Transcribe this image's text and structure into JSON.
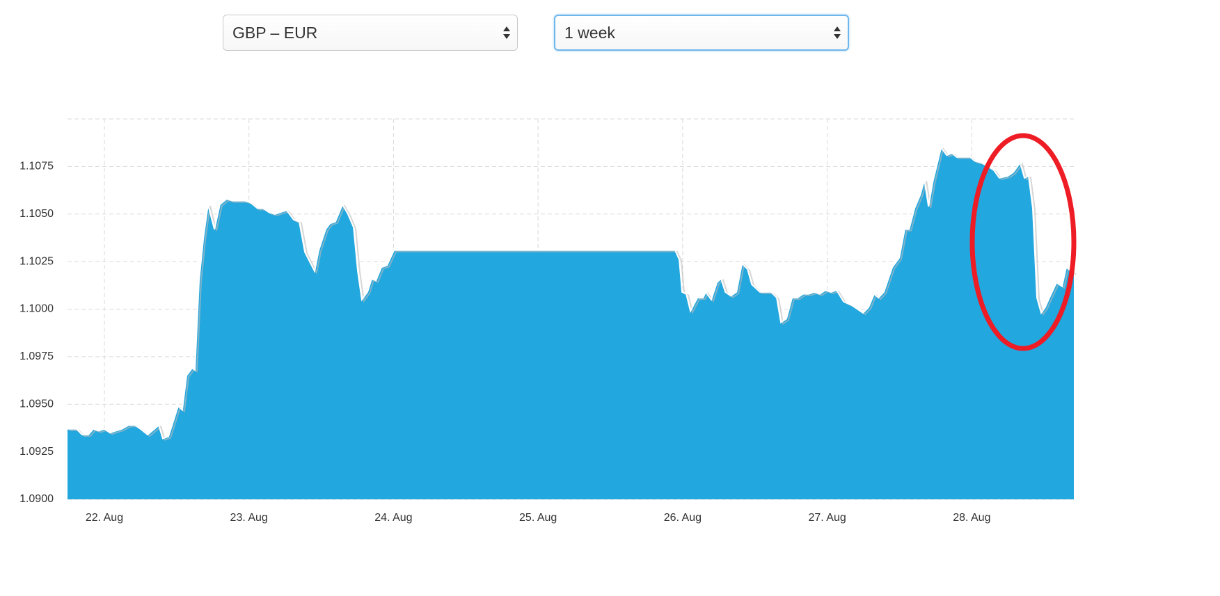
{
  "controls": {
    "pair": "GBP – EUR",
    "period": "1 week"
  },
  "chart_data": {
    "type": "area",
    "color": "#22a7df",
    "grid": true,
    "xlim": [
      21.745,
      28.706
    ],
    "xticks": [
      {
        "value": 22,
        "label": "22. Aug"
      },
      {
        "value": 23,
        "label": "23. Aug"
      },
      {
        "value": 24,
        "label": "24. Aug"
      },
      {
        "value": 25,
        "label": "25. Aug"
      },
      {
        "value": 26,
        "label": "26. Aug"
      },
      {
        "value": 27,
        "label": "27. Aug"
      },
      {
        "value": 28,
        "label": "28. Aug"
      }
    ],
    "ylim": [
      1.09,
      1.11
    ],
    "yticks": [
      {
        "value": 1.09,
        "label": "1.0900"
      },
      1.0925,
      {
        "value": 1.095,
        "label": "1.0950"
      },
      1.0975,
      {
        "value": 1.1,
        "label": "1.1000"
      },
      1.1025,
      {
        "value": 1.105,
        "label": "1.1050"
      },
      1.1075
    ],
    "x": [
      21.745,
      21.807,
      21.846,
      21.889,
      21.923,
      21.961,
      22.0,
      22.039,
      22.077,
      22.12,
      22.169,
      22.212,
      22.25,
      22.299,
      22.347,
      22.376,
      22.404,
      22.443,
      22.51,
      22.539,
      22.568,
      22.607,
      22.626,
      22.655,
      22.684,
      22.717,
      22.761,
      22.799,
      22.847,
      22.886,
      22.934,
      22.973,
      23.011,
      23.059,
      23.098,
      23.136,
      23.18,
      23.218,
      23.261,
      23.31,
      23.348,
      23.387,
      23.454,
      23.483,
      23.531,
      23.56,
      23.598,
      23.647,
      23.685,
      23.724,
      23.753,
      23.781,
      23.82,
      23.849,
      23.878,
      23.916,
      23.955,
      24.003,
      25.948,
      25.977,
      25.996,
      26.025,
      26.054,
      26.102,
      26.141,
      26.16,
      26.198,
      26.237,
      26.266,
      26.295,
      26.333,
      26.372,
      26.41,
      26.449,
      26.478,
      26.535,
      26.584,
      26.612,
      26.651,
      26.68,
      26.718,
      26.757,
      26.795,
      26.834,
      26.872,
      26.911,
      26.949,
      26.988,
      27.027,
      27.065,
      27.113,
      27.171,
      27.248,
      27.286,
      27.325,
      27.354,
      27.392,
      27.45,
      27.498,
      27.536,
      27.566,
      27.604,
      27.643,
      27.672,
      27.701,
      27.73,
      27.788,
      27.826,
      27.865,
      27.894,
      27.942,
      27.99,
      28.018,
      28.066,
      28.115,
      28.153,
      28.191,
      28.249,
      28.287,
      28.335,
      28.364,
      28.393,
      28.422,
      28.451,
      28.48,
      28.508,
      28.537,
      28.586,
      28.624,
      28.653,
      28.706
    ],
    "values": [
      1.0937,
      1.0937,
      1.0934,
      1.0934,
      1.0937,
      1.0936,
      1.0937,
      1.0935,
      1.0936,
      1.0937,
      1.0939,
      1.0939,
      1.0937,
      1.0934,
      1.0937,
      1.0939,
      1.0932,
      1.0933,
      1.0949,
      1.0947,
      1.0965,
      1.0969,
      1.0968,
      1.1015,
      1.1037,
      1.1055,
      1.1042,
      1.1055,
      1.1058,
      1.1057,
      1.1057,
      1.1057,
      1.1056,
      1.1053,
      1.1053,
      1.1051,
      1.105,
      1.1051,
      1.1052,
      1.1047,
      1.1046,
      1.103,
      1.102,
      1.1031,
      1.1042,
      1.1045,
      1.1046,
      1.1055,
      1.105,
      1.1043,
      1.102,
      1.1005,
      1.1009,
      1.1016,
      1.1015,
      1.1022,
      1.1023,
      1.1031,
      1.1031,
      1.1026,
      1.1009,
      1.1008,
      1.0999,
      1.1006,
      1.1006,
      1.1009,
      1.1005,
      1.1014,
      1.1016,
      1.1009,
      1.1007,
      1.1009,
      1.1024,
      1.1021,
      1.1013,
      1.1009,
      1.1009,
      1.1009,
      1.1006,
      1.0993,
      1.0995,
      1.1006,
      1.1006,
      1.1008,
      1.1008,
      1.1009,
      1.1008,
      1.101,
      1.1009,
      1.101,
      1.1004,
      1.1002,
      1.0998,
      1.1001,
      1.1008,
      1.1006,
      1.1009,
      1.1022,
      1.1027,
      1.1042,
      1.1042,
      1.1053,
      1.106,
      1.1068,
      1.1054,
      1.1067,
      1.1085,
      1.1081,
      1.1082,
      1.108,
      1.108,
      1.108,
      1.1078,
      1.1077,
      1.1075,
      1.1073,
      1.1069,
      1.107,
      1.1072,
      1.1077,
      1.1069,
      1.107,
      1.1053,
      1.1006,
      1.0998,
      1.1001,
      1.1006,
      1.1014,
      1.1012,
      1.1022,
      1.1019
    ]
  }
}
